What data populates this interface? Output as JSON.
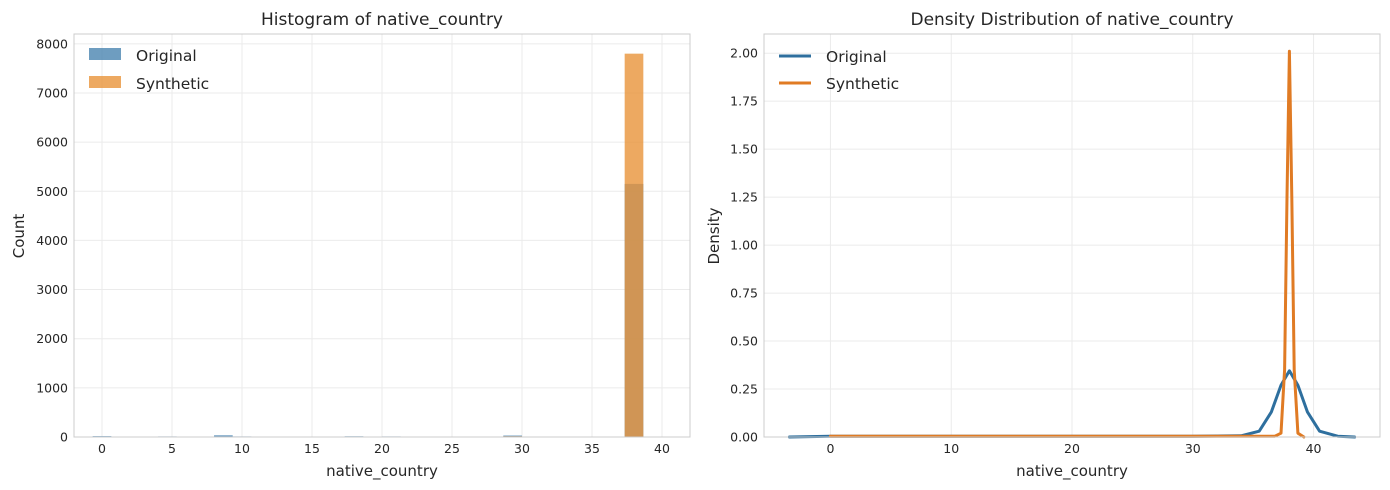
{
  "chart_data": [
    {
      "type": "bar",
      "title": "Histogram of native_country",
      "xlabel": "native_country",
      "ylabel": "Count",
      "xlim": [
        -2,
        42
      ],
      "ylim": [
        0,
        8200
      ],
      "xticks": [
        0,
        5,
        10,
        15,
        20,
        25,
        30,
        35,
        40
      ],
      "yticks": [
        0,
        1000,
        2000,
        3000,
        4000,
        5000,
        6000,
        7000,
        8000
      ],
      "grid": true,
      "legend_position": "top-left",
      "bin_width": 1.333,
      "series": [
        {
          "name": "Original",
          "color": "#4a84b0",
          "bins": [
            {
              "x": 0,
              "count": 18
            },
            {
              "x": 4.67,
              "count": 12
            },
            {
              "x": 8.67,
              "count": 35
            },
            {
              "x": 10,
              "count": 12
            },
            {
              "x": 18,
              "count": 15
            },
            {
              "x": 20.67,
              "count": 12
            },
            {
              "x": 25.33,
              "count": 10
            },
            {
              "x": 29.33,
              "count": 30
            },
            {
              "x": 38,
              "count": 5150
            }
          ]
        },
        {
          "name": "Synthetic",
          "color": "#e8943a",
          "bins": [
            {
              "x": 29.33,
              "count": 15
            },
            {
              "x": 38,
              "count": 7800
            }
          ]
        }
      ]
    },
    {
      "type": "line",
      "title": "Density Distribution of native_country",
      "xlabel": "native_country",
      "ylabel": "Density",
      "xlim": [
        -5.5,
        45.5
      ],
      "ylim": [
        0,
        2.1
      ],
      "xticks": [
        0,
        10,
        20,
        30,
        40
      ],
      "yticks": [
        "0.00",
        "0.25",
        "0.50",
        "0.75",
        "1.00",
        "1.25",
        "1.50",
        "1.75",
        "2.00"
      ],
      "grid": true,
      "legend_position": "top-left",
      "series": [
        {
          "name": "Original",
          "color": "#2e6f9e",
          "x": [
            -3.4,
            0,
            10,
            20,
            30,
            34,
            35.5,
            36.5,
            37.3,
            38,
            38.7,
            39.5,
            40.5,
            42,
            43.4
          ],
          "y": [
            0.0,
            0.004,
            0.004,
            0.004,
            0.004,
            0.006,
            0.03,
            0.13,
            0.27,
            0.345,
            0.27,
            0.13,
            0.03,
            0.004,
            0.0
          ]
        },
        {
          "name": "Synthetic",
          "color": "#e07b24",
          "x": [
            0,
            10,
            20,
            30,
            36.8,
            37.3,
            37.6,
            37.8,
            38,
            38.2,
            38.4,
            38.7,
            39.2
          ],
          "y": [
            0.004,
            0.004,
            0.004,
            0.004,
            0.004,
            0.02,
            0.35,
            1.25,
            2.01,
            1.25,
            0.35,
            0.02,
            0.0
          ]
        }
      ]
    }
  ]
}
